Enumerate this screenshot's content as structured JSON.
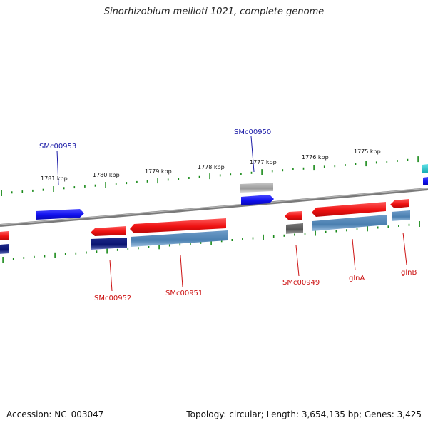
{
  "title": "Sinorhizobium meliloti 1021, complete genome",
  "footer": {
    "accession_label": "Accession:",
    "accession": "NC_003047",
    "topology_label": "Topology:",
    "topology": "circular",
    "length_label": "Length:",
    "length": "3,654,135 bp",
    "genes_label": "Genes:",
    "genes": "3,425"
  },
  "scale_labels": [
    "1781 kbp",
    "1780 kbp",
    "1779 kbp",
    "1778 kbp",
    "1777 kbp",
    "1776 kbp",
    "1775 kbp"
  ],
  "gene_labels": {
    "forward": [
      "SMc00953",
      "SMc00950"
    ],
    "reverse": [
      "SMc00952",
      "SMc00951",
      "SMc00949",
      "glnA",
      "glnB"
    ]
  },
  "colors": {
    "forward_label": "#1a1aa6",
    "reverse_label": "#cc1111",
    "forward_gene": "#1010ee",
    "reverse_gene": "#ee1111",
    "cds_steel": "#4a7fb0",
    "cds_navy": "#0a1470",
    "cds_gray": "#9a9a9a",
    "cds_darkgray": "#555555",
    "tick_green": "#1a8a1a",
    "backbone": "#7a7a7a",
    "cyan": "#11c4cc"
  }
}
